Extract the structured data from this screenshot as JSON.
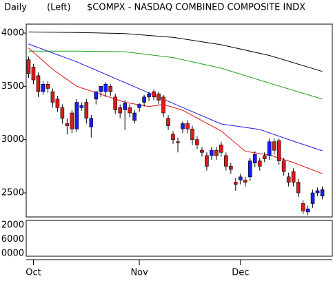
{
  "chart_data": {
    "type": "candlestick",
    "period": "Daily",
    "scale_side": "(Left)",
    "title": "$COMPX - NASDAQ COMBINED COMPOSITE INDX",
    "candles": {
      "open": [
        3750,
        3680,
        3600,
        3450,
        3520,
        3450,
        3380,
        3300,
        3150,
        3250,
        3100,
        3300,
        3350,
        3120,
        3380,
        3450,
        3450,
        3500,
        3400,
        3300,
        3280,
        3300,
        3180,
        3300,
        3350,
        3400,
        3450,
        3430,
        3400,
        3200,
        3050,
        2980,
        3100,
        3150,
        3100,
        3000,
        2900,
        2850,
        2850,
        2900,
        2950,
        2850,
        2750,
        2600,
        2620,
        2620,
        2650,
        2780,
        2800,
        2850,
        2850,
        2980,
        2990,
        2800,
        2650,
        2700,
        2600,
        2400,
        2320,
        2400,
        2500,
        2470
      ],
      "high": [
        3780,
        3710,
        3630,
        3550,
        3550,
        3480,
        3410,
        3330,
        3200,
        3280,
        3380,
        3350,
        3380,
        3230,
        3410,
        3490,
        3540,
        3520,
        3430,
        3330,
        3370,
        3330,
        3280,
        3340,
        3420,
        3450,
        3470,
        3450,
        3420,
        3230,
        3080,
        3020,
        3170,
        3180,
        3130,
        3030,
        2930,
        2880,
        2930,
        2930,
        2980,
        2880,
        2780,
        2640,
        2680,
        2650,
        2830,
        2890,
        2830,
        2880,
        3010,
        3010,
        3010,
        2830,
        2690,
        2730,
        2630,
        2430,
        2380,
        2530,
        2550,
        2560
      ],
      "low": [
        3580,
        3520,
        3400,
        3420,
        3440,
        3300,
        3260,
        3150,
        3050,
        3060,
        3070,
        3270,
        3150,
        3020,
        3330,
        3400,
        3400,
        3410,
        3240,
        3200,
        3090,
        3210,
        3150,
        3260,
        3310,
        3360,
        3370,
        3330,
        3210,
        3090,
        2960,
        2880,
        3060,
        3060,
        2950,
        2910,
        2840,
        2710,
        2810,
        2810,
        2840,
        2710,
        2680,
        2520,
        2580,
        2560,
        2610,
        2740,
        2710,
        2790,
        2810,
        2860,
        2760,
        2660,
        2560,
        2560,
        2460,
        2300,
        2290,
        2360,
        2470,
        2440
      ],
      "close": [
        3620,
        3560,
        3450,
        3520,
        3480,
        3350,
        3300,
        3200,
        3130,
        3100,
        3350,
        3320,
        3200,
        3200,
        3450,
        3500,
        3520,
        3450,
        3280,
        3250,
        3340,
        3250,
        3250,
        3330,
        3400,
        3430,
        3400,
        3370,
        3250,
        3130,
        3000,
        2970,
        3150,
        3100,
        3000,
        2950,
        2880,
        2750,
        2900,
        2850,
        2880,
        2750,
        2720,
        2580,
        2650,
        2600,
        2800,
        2860,
        2750,
        2820,
        2980,
        2900,
        2800,
        2700,
        2600,
        2600,
        2500,
        2330,
        2350,
        2500,
        2520,
        2530
      ]
    },
    "up_color": "#1a1aff",
    "down_color": "#d91c1c",
    "series": [
      {
        "color": "#000000",
        "x": [
          0,
          10,
          20,
          30,
          40,
          50,
          61
        ],
        "values": [
          4010,
          4005,
          3995,
          3960,
          3890,
          3790,
          3640
        ]
      },
      {
        "color": "#1aa01a",
        "x": [
          0,
          10,
          20,
          30,
          40,
          50,
          61
        ],
        "values": [
          3830,
          3830,
          3825,
          3770,
          3670,
          3530,
          3380
        ]
      },
      {
        "color": "#1a1ae6",
        "x": [
          0,
          10,
          20,
          30,
          40,
          48,
          55,
          61
        ],
        "values": [
          3897,
          3730,
          3535,
          3340,
          3147,
          3095,
          2985,
          2895
        ]
      },
      {
        "color": "#e01010",
        "x": [
          0,
          5,
          10,
          15,
          20,
          25,
          28,
          32,
          40,
          45,
          50,
          55,
          61
        ],
        "values": [
          3860,
          3660,
          3500,
          3425,
          3350,
          3310,
          3330,
          3275,
          3080,
          2890,
          2855,
          2785,
          2680
        ]
      }
    ],
    "xlim": [
      -0.5,
      62.5
    ],
    "xticks": [
      {
        "value": 1,
        "label": "Oct"
      },
      {
        "value": 23,
        "label": "Nov"
      },
      {
        "value": 44,
        "label": "Dec"
      }
    ],
    "ylim": [
      2274,
      4084
    ],
    "yticks": [
      4000,
      3500,
      3000,
      2500
    ],
    "volume_tick_labels": [
      "2000",
      "6000",
      "0000"
    ]
  }
}
